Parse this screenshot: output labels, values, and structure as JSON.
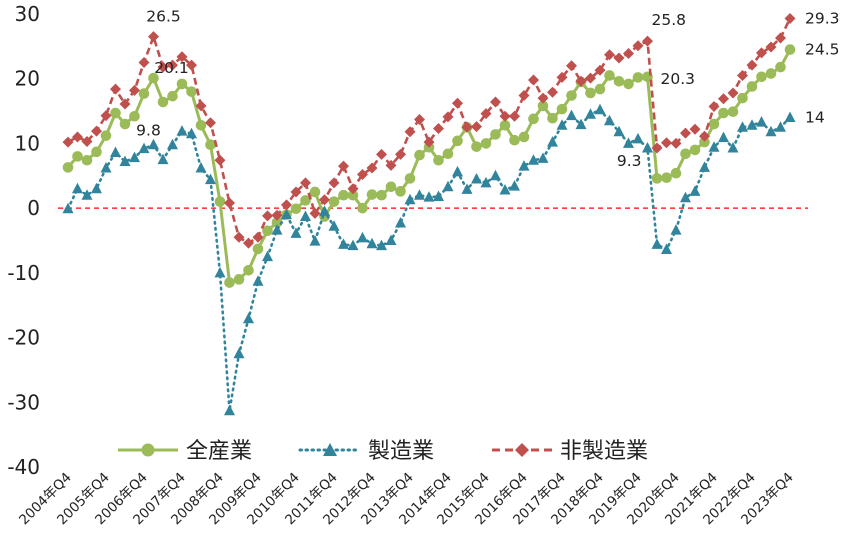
{
  "chart_data": {
    "type": "line",
    "title": "",
    "xlabel": "",
    "ylabel": "",
    "ylim": [
      -40,
      30
    ],
    "yticks": [
      30,
      20,
      10,
      0,
      -10,
      -20,
      -30,
      -40
    ],
    "xtick_labels": [
      "2004年Q4",
      "2005年Q4",
      "2006年Q4",
      "2007年Q4",
      "2008年Q4",
      "2009年Q4",
      "2010年Q4",
      "2011年Q4",
      "2012年Q4",
      "2013年Q4",
      "2014年Q4",
      "2015年Q4",
      "2016年Q4",
      "2017年Q4",
      "2018年Q4",
      "2019年Q4",
      "2020年Q4",
      "2021年Q4",
      "2022年Q4",
      "2023年Q4"
    ],
    "x_start": "2004-Q4",
    "n_points": 77,
    "zero_line": true,
    "legend_position": "bottom-left",
    "series": [
      {
        "name": "全産業",
        "color": "#9bbb59",
        "line_style": "solid",
        "marker": "circle",
        "values": [
          6.3,
          8.0,
          7.4,
          8.7,
          11.2,
          14.7,
          13.0,
          14.2,
          17.7,
          20.1,
          16.4,
          17.3,
          19.2,
          18.0,
          12.8,
          9.8,
          1.0,
          -11.5,
          -11.0,
          -9.6,
          -6.3,
          -3.5,
          -2.2,
          -1.0,
          -0.1,
          1.2,
          2.5,
          -1.3,
          1.0,
          2.0,
          2.0,
          0.0,
          2.1,
          2.0,
          3.3,
          2.6,
          4.6,
          8.2,
          9.4,
          7.4,
          8.4,
          10.4,
          12.5,
          9.5,
          10.0,
          11.4,
          12.8,
          10.5,
          11.0,
          13.8,
          15.8,
          13.9,
          15.3,
          17.4,
          19.5,
          17.8,
          18.4,
          20.5,
          19.6,
          19.2,
          20.2,
          20.3,
          4.6,
          4.7,
          5.4,
          8.4,
          9.0,
          10.2,
          13.0,
          14.7,
          14.9,
          17.0,
          18.8,
          20.3,
          20.8,
          21.8,
          24.5
        ]
      },
      {
        "name": "製造業",
        "color": "#31849b",
        "line_style": "dotted",
        "marker": "triangle",
        "values": [
          -0.1,
          3.0,
          2.0,
          3.0,
          6.2,
          8.6,
          7.2,
          7.8,
          9.2,
          9.8,
          7.5,
          9.8,
          11.9,
          11.5,
          6.2,
          4.4,
          -10.0,
          -31.3,
          -22.5,
          -17.1,
          -11.3,
          -7.5,
          -3.4,
          -1.0,
          -3.9,
          -1.3,
          -5.1,
          -0.5,
          -2.8,
          -5.6,
          -5.8,
          -4.6,
          -5.5,
          -5.8,
          -5.0,
          -2.3,
          1.3,
          2.0,
          1.7,
          1.8,
          3.3,
          5.6,
          2.9,
          4.5,
          3.9,
          5.0,
          2.8,
          3.4,
          6.5,
          7.4,
          7.7,
          10.2,
          12.8,
          14.3,
          12.9,
          14.5,
          15.2,
          13.5,
          11.8,
          10.0,
          10.7,
          9.3,
          -5.6,
          -6.4,
          -3.4,
          1.6,
          2.6,
          6.3,
          9.4,
          10.9,
          9.3,
          12.5,
          12.8,
          13.3,
          11.8,
          12.5,
          14.0
        ]
      },
      {
        "name": "非製造業",
        "color": "#c0504d",
        "line_style": "dashed",
        "marker": "diamond",
        "values": [
          10.2,
          11.0,
          10.3,
          11.9,
          14.3,
          18.4,
          16.1,
          18.2,
          22.5,
          26.5,
          21.8,
          22.1,
          23.4,
          22.1,
          15.8,
          13.2,
          7.4,
          0.8,
          -4.5,
          -5.4,
          -4.5,
          -1.2,
          -1.1,
          0.5,
          2.5,
          3.9,
          -0.8,
          1.3,
          3.9,
          6.5,
          3.0,
          5.2,
          6.2,
          8.3,
          6.6,
          8.3,
          11.8,
          13.7,
          10.2,
          12.3,
          14.1,
          16.2,
          12.5,
          12.6,
          14.6,
          16.4,
          14.2,
          14.2,
          17.4,
          19.8,
          17.0,
          17.9,
          20.2,
          22.0,
          19.6,
          20.1,
          21.3,
          23.7,
          23.2,
          23.9,
          25.1,
          25.8,
          9.3,
          10.1,
          10.0,
          11.6,
          12.2,
          11.1,
          15.7,
          16.9,
          17.8,
          20.5,
          22.1,
          24.0,
          24.9,
          26.3,
          29.3
        ]
      }
    ],
    "data_labels": [
      {
        "series": "非製造業",
        "index": 9,
        "text": "26.5"
      },
      {
        "series": "全産業",
        "index": 9,
        "text": "20.1"
      },
      {
        "series": "製造業",
        "index": 9,
        "text": "9.8"
      },
      {
        "series": "非製造業",
        "index": 61,
        "text": "25.8"
      },
      {
        "series": "全産業",
        "index": 61,
        "text": "20.3"
      },
      {
        "series": "製造業",
        "index": 61,
        "text": "9.3"
      },
      {
        "series": "非製造業",
        "index": 76,
        "text": "29.3"
      },
      {
        "series": "全産業",
        "index": 76,
        "text": "24.5"
      },
      {
        "series": "製造業",
        "index": 76,
        "text": "14"
      }
    ]
  }
}
